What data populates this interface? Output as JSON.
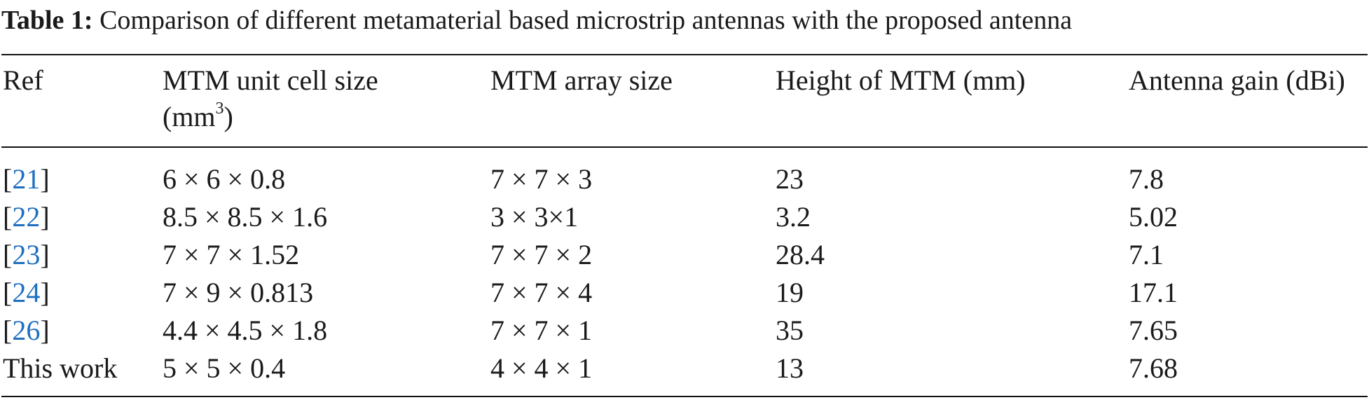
{
  "caption": {
    "label": "Table 1:",
    "text": "Comparison of different metamaterial based microstrip antennas with the proposed antenna"
  },
  "table": {
    "headers": {
      "ref": "Ref",
      "unit_cell_line1": "MTM unit cell size",
      "unit_cell_line2": "(mm",
      "unit_cell_sup": "3",
      "unit_cell_close": ")",
      "array_size": "MTM array size",
      "height": "Height of MTM (mm)",
      "gain": "Antenna gain (dBi)"
    },
    "rows": [
      {
        "ref_open": "[",
        "ref_num": "21",
        "ref_close": "]",
        "unit_cell": "6 × 6 × 0.8",
        "array": "7 × 7 × 3",
        "height": "23",
        "gain": "7.8"
      },
      {
        "ref_open": "[",
        "ref_num": "22",
        "ref_close": "]",
        "unit_cell": "8.5 × 8.5 × 1.6",
        "array": "3 × 3×1",
        "height": "3.2",
        "gain": "5.02"
      },
      {
        "ref_open": "[",
        "ref_num": "23",
        "ref_close": "]",
        "unit_cell": "7 × 7 × 1.52",
        "array": "7 × 7 × 2",
        "height": "28.4",
        "gain": "7.1"
      },
      {
        "ref_open": "[",
        "ref_num": "24",
        "ref_close": "]",
        "unit_cell": "7 × 9 × 0.813",
        "array": "7 × 7 × 4",
        "height": "19",
        "gain": "17.1"
      },
      {
        "ref_open": "[",
        "ref_num": "26",
        "ref_close": "]",
        "unit_cell": "4.4 × 4.5 × 1.8",
        "array": "7 × 7 × 1",
        "height": "35",
        "gain": "7.65"
      },
      {
        "ref_text": "This work",
        "unit_cell": "5 × 5 × 0.4",
        "array": "4 × 4 × 1",
        "height": "13",
        "gain": "7.68"
      }
    ]
  },
  "colors": {
    "text": "#1a1a1a",
    "reference_link": "#1f6fc0",
    "rule": "#111111"
  }
}
